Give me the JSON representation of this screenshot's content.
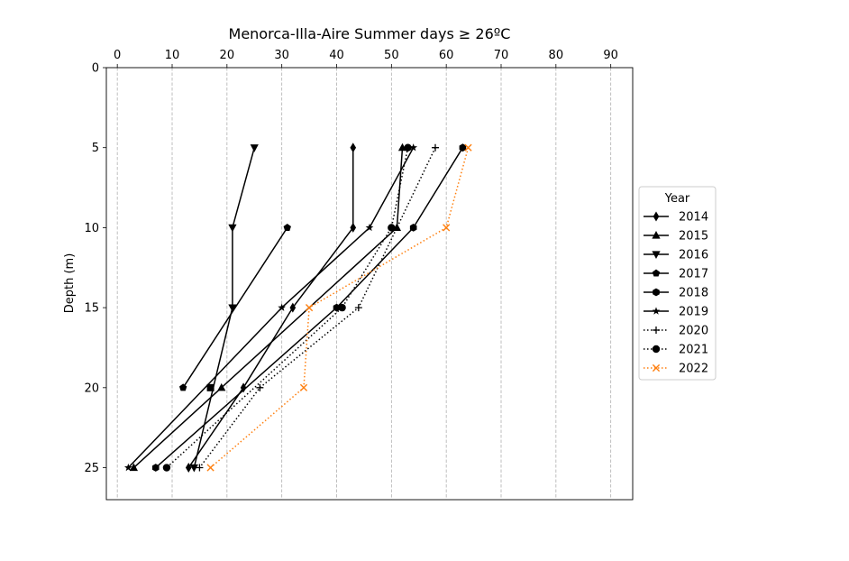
{
  "chart_data": {
    "type": "line",
    "title": "Menorca-Illa-Aire Summer days ≥ 26ºC",
    "xlabel": "",
    "ylabel": "Depth (m)",
    "xlim": [
      -2,
      94
    ],
    "ylim": [
      27,
      0
    ],
    "x_axis_position": "top",
    "y_inverted": true,
    "xticks": [
      "0",
      "10",
      "20",
      "30",
      "40",
      "50",
      "60",
      "70",
      "80",
      "90"
    ],
    "yticks": [
      "0",
      "5",
      "10",
      "15",
      "20",
      "25"
    ],
    "grid": "vertical dashed",
    "legend": {
      "title": "Year",
      "placement": "outside-right"
    },
    "series": [
      {
        "name": "2014",
        "marker": "thin_diamond",
        "linestyle": "solid",
        "color": "#000000",
        "points": [
          [
            43,
            5
          ],
          [
            43,
            10
          ],
          [
            32,
            15
          ],
          [
            23,
            20
          ],
          [
            13,
            25
          ]
        ]
      },
      {
        "name": "2015",
        "marker": "triangle_up",
        "linestyle": "solid",
        "color": "#000000",
        "points": [
          [
            52,
            5
          ],
          [
            51,
            10
          ],
          [
            19,
            20
          ],
          [
            3,
            25
          ]
        ]
      },
      {
        "name": "2016",
        "marker": "triangle_down",
        "linestyle": "solid",
        "color": "#000000",
        "points": [
          [
            25,
            5
          ],
          [
            21,
            10
          ],
          [
            21,
            15
          ],
          [
            14,
            25
          ]
        ]
      },
      {
        "name": "2017",
        "marker": "pentagon",
        "linestyle": "solid",
        "color": "#000000",
        "points": [
          [
            31,
            10
          ],
          [
            12,
            20
          ]
        ]
      },
      {
        "name": "2018",
        "marker": "hexagon",
        "linestyle": "solid",
        "color": "#000000",
        "points": [
          [
            63,
            5
          ],
          [
            54,
            10
          ],
          [
            40,
            15
          ],
          [
            7,
            25
          ]
        ]
      },
      {
        "name": "2019",
        "marker": "star",
        "linestyle": "solid",
        "color": "#000000",
        "points": [
          [
            54,
            5
          ],
          [
            46,
            10
          ],
          [
            30,
            15
          ],
          [
            2,
            25
          ]
        ]
      },
      {
        "name": "2020",
        "marker": "plus",
        "linestyle": "dotted",
        "color": "#000000",
        "points": [
          [
            58,
            5
          ],
          [
            44,
            15
          ],
          [
            26,
            20
          ],
          [
            15,
            25
          ]
        ]
      },
      {
        "name": "2021",
        "marker": "circle",
        "linestyle": "dotted",
        "color": "#000000",
        "points": [
          [
            53,
            5
          ],
          [
            50,
            10
          ],
          [
            41,
            15
          ],
          [
            9,
            25
          ]
        ]
      },
      {
        "name": "2022",
        "marker": "x",
        "linestyle": "dotted",
        "color": "#ff7f0e",
        "points": [
          [
            64,
            5
          ],
          [
            60,
            10
          ],
          [
            35,
            15
          ],
          [
            34,
            20
          ],
          [
            17,
            25
          ]
        ]
      }
    ],
    "extra_marks": [
      {
        "marker": "square",
        "color": "#000000",
        "points": [
          [
            17,
            20
          ]
        ]
      }
    ]
  }
}
